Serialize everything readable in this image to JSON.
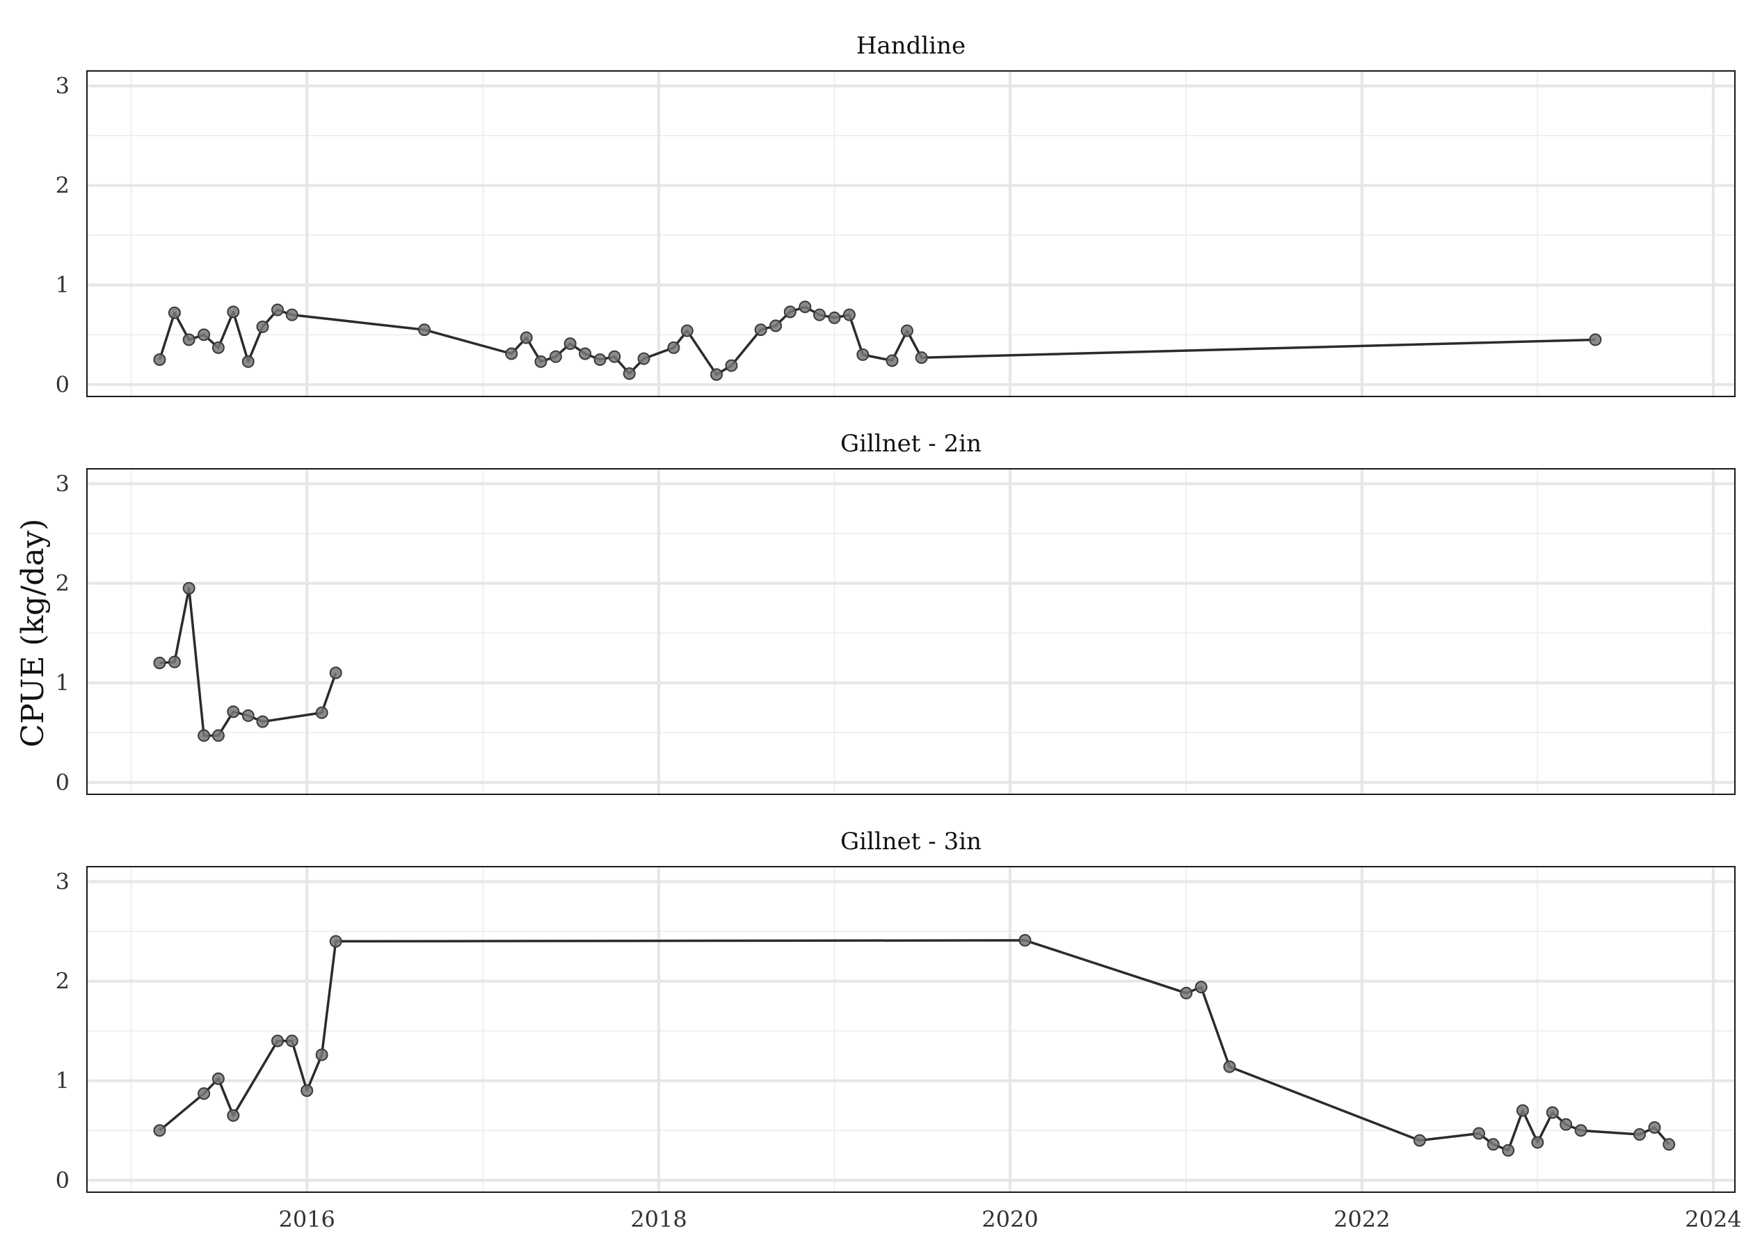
{
  "chart_data": {
    "type": "line",
    "ylabel": "CPUE (kg/day)",
    "xlabel": "",
    "x_ticks": [
      "2016",
      "2018",
      "2020",
      "2022",
      "2024"
    ],
    "y_ticks": [
      "0",
      "1",
      "2",
      "3"
    ],
    "xlim": [
      "2014-10-01",
      "2024-02-15"
    ],
    "ylim": [
      -0.12,
      3.15
    ],
    "grid": true,
    "legend": "none",
    "line_color": "#2b2b2b",
    "point_color": "#777777",
    "facets": [
      {
        "title": "Handline",
        "points": [
          [
            "2015-03-01",
            0.25
          ],
          [
            "2015-04-01",
            0.72
          ],
          [
            "2015-05-01",
            0.45
          ],
          [
            "2015-06-01",
            0.5
          ],
          [
            "2015-07-01",
            0.37
          ],
          [
            "2015-08-01",
            0.73
          ],
          [
            "2015-09-01",
            0.23
          ],
          [
            "2015-10-01",
            0.58
          ],
          [
            "2015-11-01",
            0.75
          ],
          [
            "2015-12-01",
            0.7
          ],
          [
            "2016-09-01",
            0.55
          ],
          [
            "2017-03-01",
            0.31
          ],
          [
            "2017-04-01",
            0.47
          ],
          [
            "2017-05-01",
            0.23
          ],
          [
            "2017-06-01",
            0.28
          ],
          [
            "2017-07-01",
            0.41
          ],
          [
            "2017-08-01",
            0.31
          ],
          [
            "2017-09-01",
            0.25
          ],
          [
            "2017-10-01",
            0.28
          ],
          [
            "2017-11-01",
            0.11
          ],
          [
            "2017-12-01",
            0.26
          ],
          [
            "2018-02-01",
            0.37
          ],
          [
            "2018-03-01",
            0.54
          ],
          [
            "2018-05-01",
            0.1
          ],
          [
            "2018-06-01",
            0.19
          ],
          [
            "2018-08-01",
            0.55
          ],
          [
            "2018-09-01",
            0.59
          ],
          [
            "2018-10-01",
            0.73
          ],
          [
            "2018-11-01",
            0.78
          ],
          [
            "2018-12-01",
            0.7
          ],
          [
            "2019-01-01",
            0.67
          ],
          [
            "2019-02-01",
            0.7
          ],
          [
            "2019-03-01",
            0.3
          ],
          [
            "2019-05-01",
            0.24
          ],
          [
            "2019-06-01",
            0.54
          ],
          [
            "2019-07-01",
            0.27
          ],
          [
            "2023-05-01",
            0.45
          ]
        ]
      },
      {
        "title": "Gillnet - 2in",
        "points": [
          [
            "2015-03-01",
            1.2
          ],
          [
            "2015-04-01",
            1.21
          ],
          [
            "2015-05-01",
            1.95
          ],
          [
            "2015-06-01",
            0.47
          ],
          [
            "2015-07-01",
            0.47
          ],
          [
            "2015-08-01",
            0.71
          ],
          [
            "2015-09-01",
            0.67
          ],
          [
            "2015-10-01",
            0.61
          ],
          [
            "2016-02-01",
            0.7
          ],
          [
            "2016-03-01",
            1.1
          ]
        ]
      },
      {
        "title": "Gillnet - 3in",
        "points": [
          [
            "2015-03-01",
            0.5
          ],
          [
            "2015-06-01",
            0.87
          ],
          [
            "2015-07-01",
            1.02
          ],
          [
            "2015-08-01",
            0.65
          ],
          [
            "2015-11-01",
            1.4
          ],
          [
            "2015-12-01",
            1.4
          ],
          [
            "2016-01-01",
            0.9
          ],
          [
            "2016-02-01",
            1.26
          ],
          [
            "2016-03-01",
            2.4
          ],
          [
            "2020-02-01",
            2.41
          ],
          [
            "2021-01-01",
            1.88
          ],
          [
            "2021-02-01",
            1.94
          ],
          [
            "2021-04-01",
            1.14
          ],
          [
            "2022-05-01",
            0.4
          ],
          [
            "2022-09-01",
            0.47
          ],
          [
            "2022-10-01",
            0.36
          ],
          [
            "2022-11-01",
            0.3
          ],
          [
            "2022-12-01",
            0.7
          ],
          [
            "2023-01-01",
            0.38
          ],
          [
            "2023-02-01",
            0.68
          ],
          [
            "2023-03-01",
            0.56
          ],
          [
            "2023-04-01",
            0.5
          ],
          [
            "2023-08-01",
            0.46
          ],
          [
            "2023-09-01",
            0.53
          ],
          [
            "2023-10-01",
            0.36
          ]
        ]
      }
    ]
  }
}
